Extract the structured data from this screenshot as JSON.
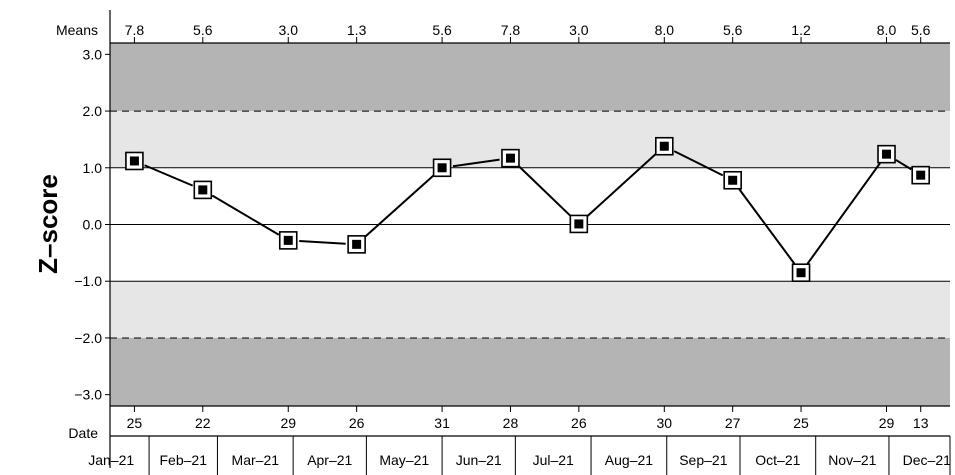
{
  "chart_data": {
    "type": "line",
    "ylabel": "Z–score",
    "ylim": [
      -3.2,
      3.2
    ],
    "yticks": [
      "3.0",
      "2.0",
      "1.0",
      "0.0",
      "−1.0",
      "−2.0",
      "−3.0"
    ],
    "ytick_values": [
      3,
      2,
      1,
      0,
      -1,
      -2,
      -3
    ],
    "means_label": "Means",
    "date_label": "Date",
    "months": [
      "Jan–21",
      "Feb–21",
      "Mar–21",
      "Apr–21",
      "May–21",
      "Jun–21",
      "Jul–21",
      "Aug–21",
      "Sep–21",
      "Oct–21",
      "Nov–21",
      "Dec–21"
    ],
    "points": [
      {
        "month": "Jan–21",
        "day": "25",
        "mean": "7.8",
        "z": 1.12
      },
      {
        "month": "Feb–21",
        "day": "22",
        "mean": "5.6",
        "z": 0.61
      },
      {
        "month": "Mar–21",
        "day": "29",
        "mean": "3.0",
        "z": -0.28
      },
      {
        "month": "Apr–21",
        "day": "26",
        "mean": "1.3",
        "z": -0.35
      },
      {
        "month": "May–21",
        "day": "31",
        "mean": "5.6",
        "z": 1.0
      },
      {
        "month": "Jun–21",
        "day": "28",
        "mean": "7.8",
        "z": 1.17
      },
      {
        "month": "Jul–21",
        "day": "26",
        "mean": "3.0",
        "z": 0.01
      },
      {
        "month": "Aug–21",
        "day": "30",
        "mean": "8.0",
        "z": 1.38
      },
      {
        "month": "Sep–21",
        "day": "27",
        "mean": "5.6",
        "z": 0.78
      },
      {
        "month": "Oct–21",
        "day": "25",
        "mean": "1.2",
        "z": -0.85
      },
      {
        "month": "Nov–21",
        "day": "29",
        "mean": "8.0",
        "z": 1.24
      },
      {
        "month": "Dec–21",
        "day": "13",
        "mean": "5.6",
        "z": 0.87
      }
    ],
    "bands": [
      {
        "from": 2,
        "to": 3.2,
        "color": "#b4b4b4"
      },
      {
        "from": 1,
        "to": 2,
        "color": "#e6e6e6"
      },
      {
        "from": -2,
        "to": -1,
        "color": "#e6e6e6"
      },
      {
        "from": -3.2,
        "to": -2,
        "color": "#b4b4b4"
      }
    ],
    "dashed_lines": [
      2,
      -2
    ],
    "grid": false,
    "colors": {
      "line": "#000000",
      "marker_fill": "#ffffff",
      "marker_center": "#000000",
      "frame": "#000000"
    }
  }
}
